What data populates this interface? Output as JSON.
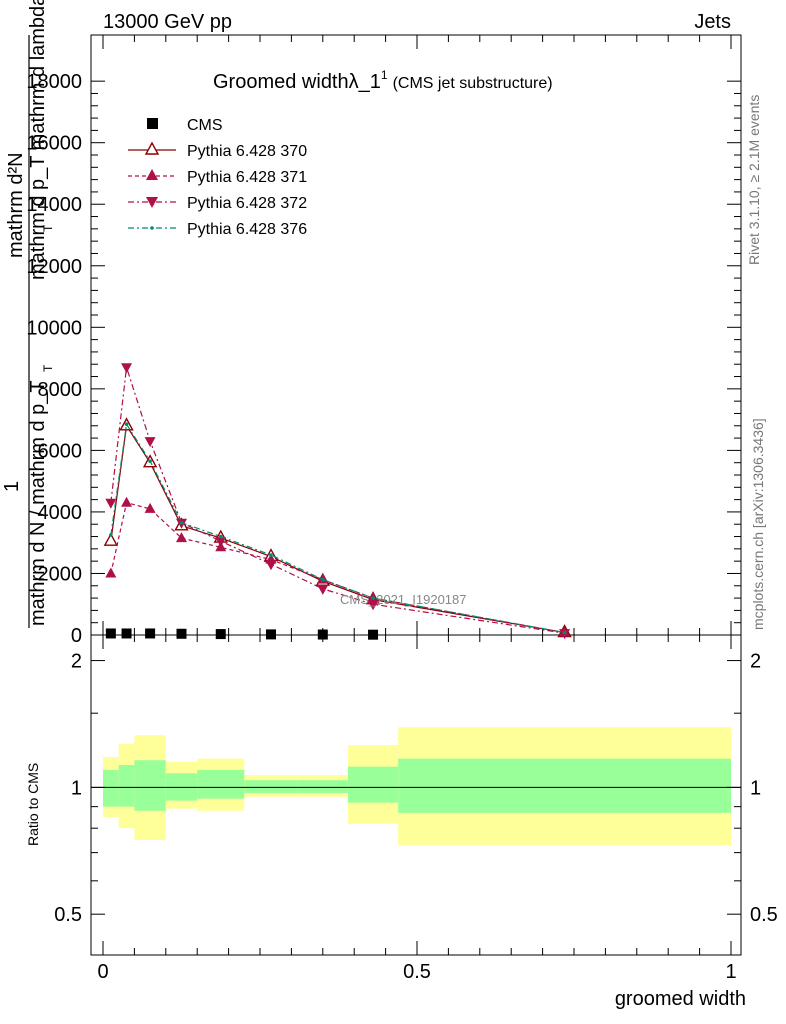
{
  "header": {
    "left": "13000 GeV pp",
    "right": "Jets"
  },
  "side_text": {
    "rivet": "Rivet 3.1.10, ≥ 2.1M events",
    "mcplots": "mcplots.cern.ch [arXiv:1306.3436]"
  },
  "watermark": "CMS_2021_I1920187",
  "colors": {
    "cms": "#000000",
    "pythia370": "#8b0000",
    "pythia371": "#b0104a",
    "pythia372": "#b0104a",
    "pythia376": "#008b74",
    "band_inner": "#99ff99",
    "band_outer": "#ffff99"
  },
  "chart_data": [
    {
      "type": "line",
      "title": "Groomed widthλ_1",
      "title_sup": "1",
      "title_suffix": "(CMS jet substructure)",
      "ylabel_top": "mathrm d²N",
      "ylabel_top_2": "mathrm d p_T mathrm d lambda",
      "ylabel_top_2_sub": "T",
      "ylabel_bottom_num": "1",
      "ylabel_bottom": "mathrm d N / mathrm d p_T",
      "ylabel_bottom_sub": "T",
      "xlim": [
        0,
        1
      ],
      "ylim": [
        0,
        19500
      ],
      "y_ticks": [
        0,
        2000,
        4000,
        6000,
        8000,
        10000,
        12000,
        14000,
        16000,
        18000
      ],
      "y_tick_labels": [
        "0",
        "2000",
        "4000",
        "6000",
        "8000",
        "10000",
        "12000",
        "14000",
        "16000",
        "18000"
      ],
      "legend_position": "top-left",
      "series": [
        {
          "name": "CMS",
          "marker": "square",
          "x": [
            0.0125,
            0.0375,
            0.075,
            0.125,
            0.1875,
            0.2675,
            0.35,
            0.43
          ],
          "y": [
            50,
            50,
            50,
            40,
            30,
            20,
            15,
            10
          ]
        },
        {
          "name": "Pythia 6.428 370",
          "marker": "triangle-up-open",
          "x": [
            0.0125,
            0.0375,
            0.075,
            0.125,
            0.1875,
            0.2675,
            0.35,
            0.43,
            0.735
          ],
          "y": [
            3050,
            6800,
            5600,
            3550,
            3150,
            2550,
            1750,
            1150,
            80
          ]
        },
        {
          "name": "Pythia 6.428 371",
          "marker": "triangle-up-filled",
          "x": [
            0.0125,
            0.0375,
            0.075,
            0.125,
            0.1875,
            0.2675,
            0.35,
            0.43,
            0.735
          ],
          "y": [
            2000,
            4300,
            4100,
            3150,
            2850,
            2450,
            1800,
            1200,
            80
          ]
        },
        {
          "name": "Pythia 6.428 372",
          "marker": "triangle-down-filled",
          "x": [
            0.0125,
            0.0375,
            0.075,
            0.125,
            0.1875,
            0.2675,
            0.35,
            0.43,
            0.735
          ],
          "y": [
            4300,
            8700,
            6300,
            3650,
            3050,
            2300,
            1500,
            1000,
            60
          ]
        },
        {
          "name": "Pythia 6.428 376",
          "marker": "dot",
          "x": [
            0.0125,
            0.0375,
            0.075,
            0.125,
            0.1875,
            0.2675,
            0.35,
            0.43,
            0.735
          ],
          "y": [
            3250,
            6850,
            5650,
            3650,
            3200,
            2600,
            1800,
            1200,
            80
          ]
        }
      ]
    },
    {
      "type": "area",
      "ylabel": "Ratio to CMS",
      "xlabel": "groomed width",
      "xlim": [
        0,
        1
      ],
      "ylim": [
        0.4,
        2.3
      ],
      "y_scale": "log",
      "x_ticks": [
        0,
        0.5,
        1
      ],
      "x_tick_labels": [
        "0",
        "0.5",
        "1"
      ],
      "y_ticks": [
        0.5,
        1,
        2
      ],
      "y_tick_labels": [
        "0.5",
        "1",
        "2"
      ],
      "bins": [
        {
          "lo": 0.0,
          "hi": 0.025,
          "inner": [
            0.9,
            1.1
          ],
          "outer": [
            0.85,
            1.18
          ]
        },
        {
          "lo": 0.025,
          "hi": 0.05,
          "inner": [
            0.9,
            1.13
          ],
          "outer": [
            0.8,
            1.27
          ]
        },
        {
          "lo": 0.05,
          "hi": 0.1,
          "inner": [
            0.88,
            1.16
          ],
          "outer": [
            0.75,
            1.33
          ]
        },
        {
          "lo": 0.1,
          "hi": 0.15,
          "inner": [
            0.93,
            1.08
          ],
          "outer": [
            0.89,
            1.15
          ]
        },
        {
          "lo": 0.15,
          "hi": 0.225,
          "inner": [
            0.94,
            1.1
          ],
          "outer": [
            0.88,
            1.17
          ]
        },
        {
          "lo": 0.225,
          "hi": 0.31,
          "inner": [
            0.97,
            1.04
          ],
          "outer": [
            0.95,
            1.07
          ]
        },
        {
          "lo": 0.31,
          "hi": 0.39,
          "inner": [
            0.97,
            1.04
          ],
          "outer": [
            0.95,
            1.07
          ]
        },
        {
          "lo": 0.39,
          "hi": 0.47,
          "inner": [
            0.92,
            1.12
          ],
          "outer": [
            0.82,
            1.26
          ]
        },
        {
          "lo": 0.47,
          "hi": 1.0,
          "inner": [
            0.87,
            1.17
          ],
          "outer": [
            0.73,
            1.39
          ]
        }
      ]
    }
  ]
}
